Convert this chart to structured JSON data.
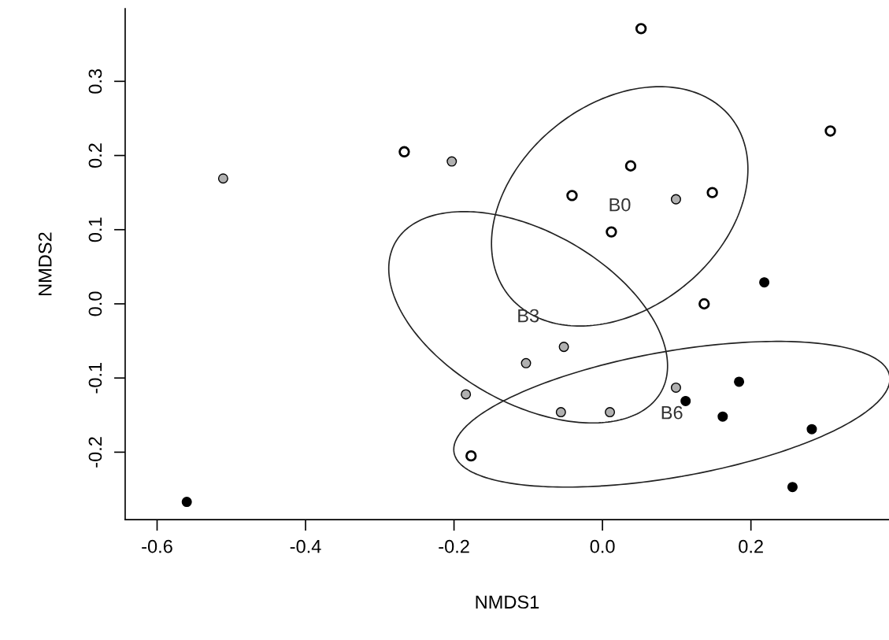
{
  "chart_data": {
    "type": "scatter",
    "xlabel": "NMDS1",
    "ylabel": "NMDS2",
    "xlim": [
      -0.643,
      0.386
    ],
    "ylim": [
      -0.291,
      0.398
    ],
    "xticks": [
      -0.6,
      -0.4,
      -0.2,
      {
        "value": 0,
        "label": "0.0"
      },
      0.2
    ],
    "yticks": [
      -0.2,
      -0.1,
      {
        "value": 0,
        "label": "0.0"
      },
      0.1,
      0.2,
      0.3
    ],
    "grid": false,
    "legend": false,
    "marker": "circle",
    "series": [
      {
        "color": "#ffffff",
        "x": [
          -0.267,
          0.052,
          0.307,
          0.038,
          -0.041,
          0.148,
          0.012,
          0.137,
          -0.177
        ],
        "values": [
          0.205,
          0.371,
          0.233,
          0.186,
          0.146,
          0.15,
          0.097,
          0.0,
          -0.205
        ]
      },
      {
        "color": "#b0b0b0",
        "x": [
          -0.511,
          -0.203,
          -0.184,
          0.099,
          -0.052,
          -0.103,
          0.099,
          -0.056,
          0.01
        ],
        "values": [
          0.169,
          0.192,
          -0.122,
          0.141,
          -0.058,
          -0.08,
          -0.113,
          -0.146,
          -0.146
        ]
      },
      {
        "color": "#000000",
        "x": [
          -0.56,
          0.218,
          0.184,
          0.112,
          0.162,
          0.282,
          0.256
        ],
        "values": [
          -0.267,
          0.029,
          -0.105,
          -0.131,
          -0.152,
          -0.169,
          -0.247
        ]
      }
    ],
    "annotations": [
      "B0",
      "B3",
      "B6"
    ]
  }
}
